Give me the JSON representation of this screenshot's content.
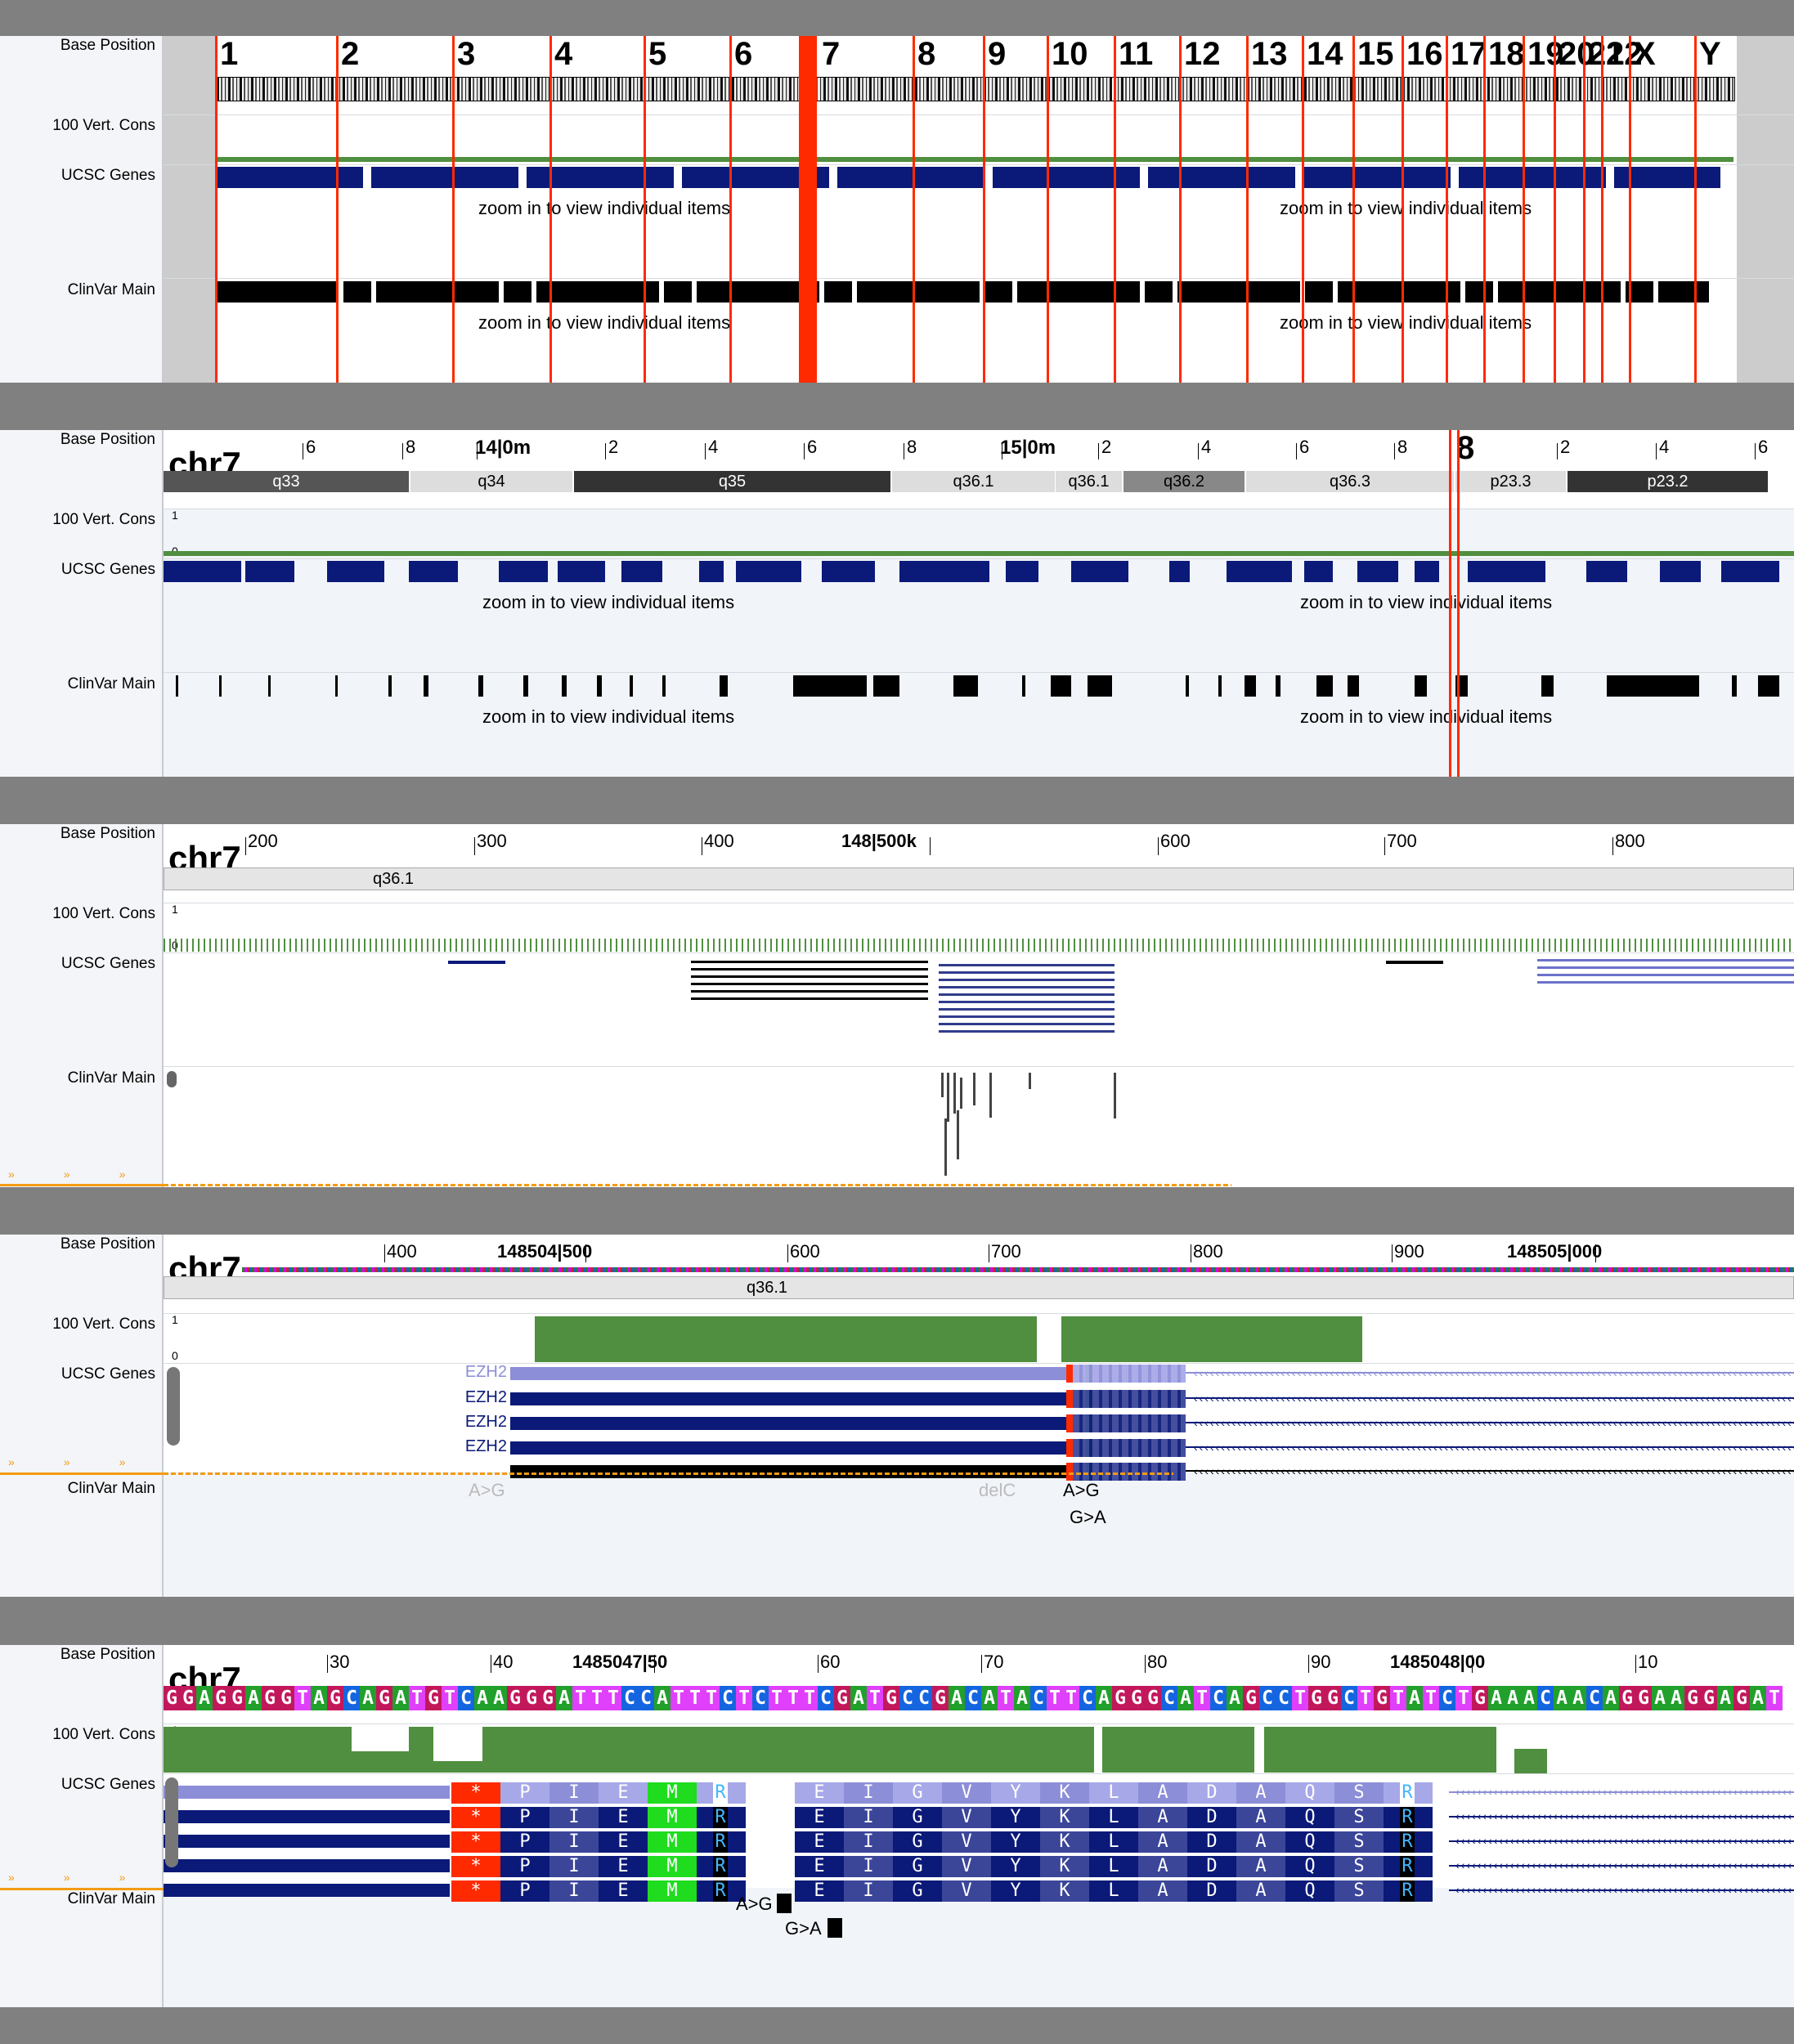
{
  "tracks": [
    "Base Position",
    "100 Vert. Cons",
    "UCSC Genes",
    "ClinVar Main"
  ],
  "scale": {
    "one": "1",
    "zero": "0"
  },
  "zoom_message": "zoom in to view individual items",
  "panel1": {
    "chromosomes": [
      "1",
      "2",
      "3",
      "4",
      "5",
      "6",
      "7",
      "8",
      "9",
      "10",
      "11",
      "12",
      "13",
      "14",
      "15",
      "16",
      "17",
      "18",
      "19",
      "20",
      "21",
      "22",
      "X",
      "Y"
    ]
  },
  "panel2": {
    "chrom": "chr7",
    "ticks": [
      "6",
      "8",
      "14|0m",
      "2",
      "4",
      "6",
      "8",
      "15|0m",
      "2",
      "4",
      "6",
      "8",
      "8",
      "2",
      "4",
      "6"
    ],
    "bands": [
      "q33",
      "q34",
      "q35",
      "q36.1",
      "q36.1",
      "q36.2",
      "q36.3",
      "p23.3",
      "p23.2"
    ]
  },
  "panel3": {
    "chrom": "chr7",
    "ticks": [
      "200",
      "300",
      "400",
      "148|500k",
      "600",
      "700",
      "800"
    ],
    "band": "q36.1"
  },
  "panel4": {
    "chrom": "chr7",
    "ticks": [
      "400",
      "148504|500",
      "600",
      "700",
      "800",
      "900",
      "148505|000"
    ],
    "band": "q36.1",
    "gene": "EZH2",
    "variants": [
      "A>G",
      "delC",
      "A>G",
      "G>A"
    ]
  },
  "panel5": {
    "chrom": "chr7",
    "ticks": [
      "30",
      "40",
      "1485047|50",
      "60",
      "70",
      "80",
      "90",
      "1485048|00",
      "10"
    ],
    "sequence": "GGAGGAGGTAGCAGATGTCAAGGGATTTCCATTTCTCTTTCGATGCCGACATACTTCAGGGCATCAGCCTGGCTGTATCTGAAACAACAGGAAGGAGAT",
    "amino_acids": [
      "*",
      "P",
      "I",
      "E",
      "M",
      "E",
      "R",
      "E",
      "I",
      "G",
      "V",
      "Y",
      "K",
      "L",
      "A",
      "D",
      "A",
      "Q",
      "S",
      "Y",
      "R"
    ],
    "variants": [
      "A>G",
      "G>A"
    ]
  }
}
